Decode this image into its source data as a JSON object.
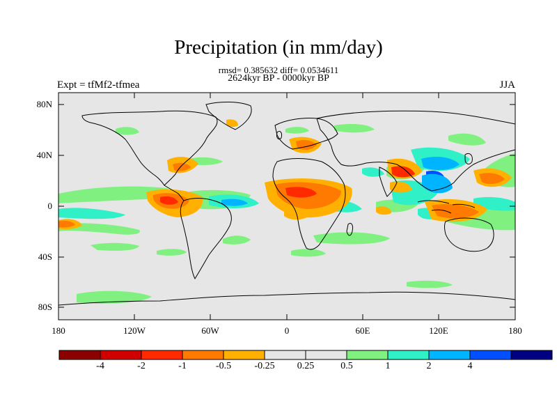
{
  "figure": {
    "title": "Precipitation (in mm/day)",
    "stats_line": "rmsd= 0.385632 diff= 0.0534611",
    "period": "2624kyr BP - 0000kyr BP",
    "experiment": "Expt = tfMf2-tfmea",
    "season": "JJA"
  },
  "axes": {
    "lat_labels": [
      "80N",
      "40N",
      "0",
      "40S",
      "80S"
    ],
    "lon_labels": [
      "180",
      "120W",
      "60W",
      "0",
      "60E",
      "120E",
      "180"
    ]
  },
  "colorbar": {
    "colors": [
      "#8b0000",
      "#d00000",
      "#ff2a00",
      "#ff7a00",
      "#ffb000",
      "#e6e6e6",
      "#e6e6e6",
      "#80f080",
      "#30f0c8",
      "#00b4ff",
      "#0050ff",
      "#000080"
    ],
    "labels": [
      "-4",
      "-2",
      "-1",
      "-0.5",
      "-0.25",
      "0.25",
      "0.5",
      "1",
      "2",
      "4"
    ]
  },
  "map_colors": {
    "background": "#e6e6e6",
    "coast": "#000000",
    "green": "#80f080",
    "teal": "#30f0c8",
    "lightblue": "#00b4ff",
    "blue": "#0050ff",
    "yellow": "#ffb000",
    "orange": "#ff7a00",
    "red": "#ff2a00"
  }
}
